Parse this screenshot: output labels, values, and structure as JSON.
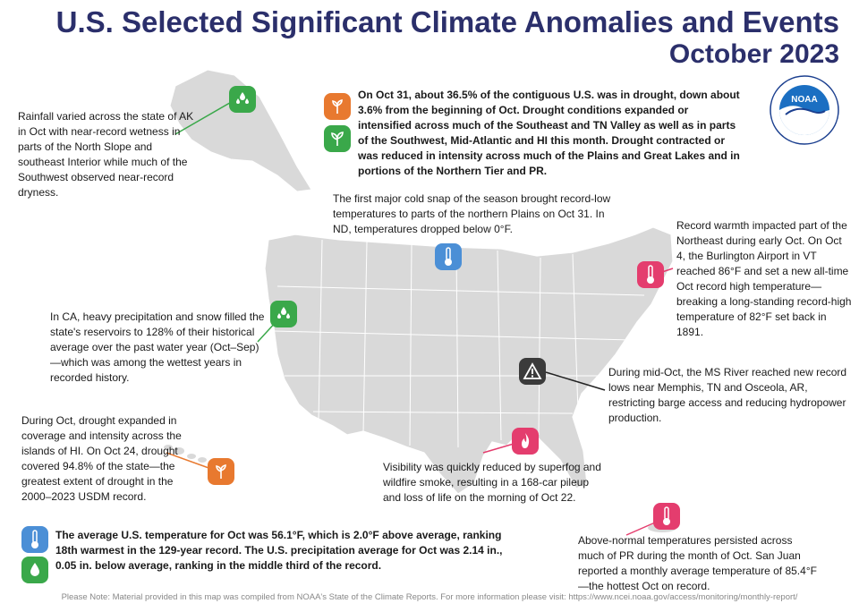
{
  "header": {
    "title": "U.S. Selected Significant Climate Anomalies and Events",
    "subtitle": "October 2023"
  },
  "logo": {
    "text": "NOAA",
    "ring_text": "NATIONAL OCEANIC AND ATMOSPHERIC ADMINISTRATION",
    "ring_bottom": "U.S. DEPARTMENT OF COMMERCE"
  },
  "drought_summary": {
    "text": "On Oct 31, about 36.5% of the contiguous U.S. was in drought, down about 3.6% from the beginning of Oct. Drought conditions expanded or intensified across much of the Southeast and TN Valley as well as in parts of the Southwest, Mid-Atlantic and HI this month. Drought contracted or was reduced in intensity across much of the Plains and Great Lakes and in portions of the Northern Tier and PR.",
    "icons": [
      "drought-icon",
      "wet-icon"
    ]
  },
  "annotations": {
    "alaska": "Rainfall varied across the state of AK in Oct with near-record wetness in parts of the North Slope and southeast Interior while much of the Southwest observed near-record dryness.",
    "plains": "The first major cold snap of the season brought record-low temperatures to parts of the northern Plains on Oct 31. In ND, temperatures dropped below 0°F.",
    "northeast": "Record warmth impacted part of the Northeast during early Oct. On Oct 4, the Burlington Airport in VT reached 86°F and set a new all-time Oct record high temperature—breaking a long-standing record-high temperature of 82°F set back in 1891.",
    "california": "In CA, heavy precipitation and snow filled the state's reservoirs to 128% of their historical average over the past water year (Oct–Sep)—which was among the wettest years in recorded history.",
    "mississippi": "During mid-Oct, the MS River reached new record lows near Memphis, TN and Osceola, AR, restricting barge access and reducing hydropower production.",
    "hawaii": "During Oct, drought expanded in coverage and intensity across the islands of HI. On Oct 24, drought covered 94.8% of the state—the greatest extent of drought in the 2000–2023 USDM record.",
    "louisiana": "Visibility was quickly reduced by superfog and wildfire smoke, resulting in a 168-car pileup and loss of life on the morning of Oct 22.",
    "puerto_rico": "Above-normal temperatures persisted across much of PR during the month of Oct. San Juan reported a monthly average temperature of 85.4°F—the hottest Oct on record."
  },
  "national_summary": "The average U.S. temperature for Oct was 56.1°F, which is 2.0°F above average, ranking 18th warmest in the 129-year record. The U.S. precipitation average for Oct was 2.14 in., 0.05 in. below average, ranking in the middle third of the record.",
  "footer_note": "Please Note: Material provided in this map was compiled from NOAA's State of the Climate Reports. For more information please visit: https://www.ncei.noaa.gov/access/monitoring/monthly-report/",
  "colors": {
    "title": "#2b2f6b",
    "map_fill": "#d9d9d9",
    "green": "#3aa84a",
    "orange": "#e8792f",
    "blue": "#4b8fd6",
    "pink": "#e43d6e",
    "dark": "#3b3b3b"
  }
}
